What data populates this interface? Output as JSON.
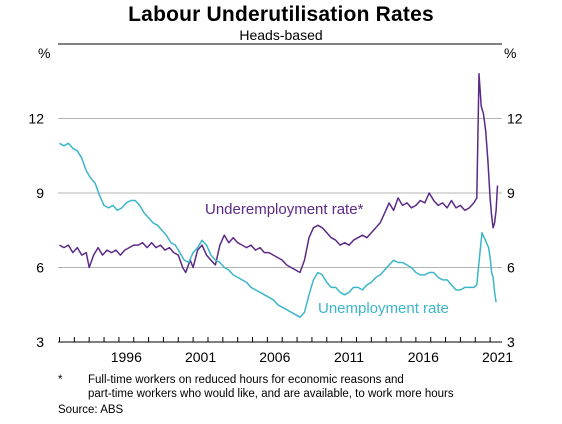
{
  "chart_data": {
    "type": "line",
    "title": "Labour Underutilisation Rates",
    "subtitle": "Heads-based",
    "unit_left": "%",
    "unit_right": "%",
    "ylim": [
      3,
      15
    ],
    "yticks": [
      3,
      6,
      9,
      12
    ],
    "xlim": [
      1991.9,
      2021.8
    ],
    "xticks": [
      {
        "label": "1996",
        "value": 1996.5
      },
      {
        "label": "2001",
        "value": 2001.5
      },
      {
        "label": "2006",
        "value": 2006.5
      },
      {
        "label": "2011",
        "value": 2011.5
      },
      {
        "label": "2016",
        "value": 2016.5
      },
      {
        "label": "2021",
        "value": 2021.5
      }
    ],
    "grid": true,
    "series": [
      {
        "name": "Underemployment rate*",
        "color": "#5b2a86",
        "points": [
          [
            1992.0,
            6.9
          ],
          [
            1992.3,
            6.8
          ],
          [
            1992.6,
            6.9
          ],
          [
            1992.9,
            6.6
          ],
          [
            1993.2,
            6.8
          ],
          [
            1993.5,
            6.5
          ],
          [
            1993.8,
            6.6
          ],
          [
            1994.0,
            6.0
          ],
          [
            1994.3,
            6.5
          ],
          [
            1994.6,
            6.8
          ],
          [
            1994.9,
            6.5
          ],
          [
            1995.2,
            6.7
          ],
          [
            1995.5,
            6.6
          ],
          [
            1995.8,
            6.7
          ],
          [
            1996.1,
            6.5
          ],
          [
            1996.4,
            6.7
          ],
          [
            1996.7,
            6.8
          ],
          [
            1997.0,
            6.9
          ],
          [
            1997.3,
            6.9
          ],
          [
            1997.6,
            7.0
          ],
          [
            1997.9,
            6.8
          ],
          [
            1998.2,
            7.0
          ],
          [
            1998.5,
            6.8
          ],
          [
            1998.8,
            6.9
          ],
          [
            1999.1,
            6.7
          ],
          [
            1999.4,
            6.8
          ],
          [
            1999.7,
            6.6
          ],
          [
            2000.0,
            6.5
          ],
          [
            2000.3,
            6.0
          ],
          [
            2000.5,
            5.8
          ],
          [
            2000.8,
            6.3
          ],
          [
            2001.0,
            6.0
          ],
          [
            2001.3,
            6.7
          ],
          [
            2001.6,
            6.9
          ],
          [
            2001.9,
            6.5
          ],
          [
            2002.2,
            6.3
          ],
          [
            2002.5,
            6.1
          ],
          [
            2002.8,
            6.9
          ],
          [
            2003.1,
            7.3
          ],
          [
            2003.4,
            7.0
          ],
          [
            2003.7,
            7.2
          ],
          [
            2004.0,
            7.0
          ],
          [
            2004.3,
            6.9
          ],
          [
            2004.6,
            6.8
          ],
          [
            2004.9,
            6.9
          ],
          [
            2005.2,
            6.7
          ],
          [
            2005.5,
            6.8
          ],
          [
            2005.8,
            6.6
          ],
          [
            2006.1,
            6.6
          ],
          [
            2006.4,
            6.5
          ],
          [
            2006.7,
            6.4
          ],
          [
            2007.0,
            6.3
          ],
          [
            2007.3,
            6.1
          ],
          [
            2007.6,
            6.0
          ],
          [
            2007.9,
            5.9
          ],
          [
            2008.2,
            5.8
          ],
          [
            2008.5,
            6.3
          ],
          [
            2008.8,
            7.2
          ],
          [
            2009.1,
            7.6
          ],
          [
            2009.4,
            7.7
          ],
          [
            2009.7,
            7.6
          ],
          [
            2010.0,
            7.4
          ],
          [
            2010.3,
            7.2
          ],
          [
            2010.6,
            7.1
          ],
          [
            2010.9,
            6.9
          ],
          [
            2011.2,
            7.0
          ],
          [
            2011.5,
            6.9
          ],
          [
            2011.8,
            7.1
          ],
          [
            2012.1,
            7.2
          ],
          [
            2012.4,
            7.3
          ],
          [
            2012.7,
            7.2
          ],
          [
            2013.0,
            7.4
          ],
          [
            2013.3,
            7.6
          ],
          [
            2013.6,
            7.8
          ],
          [
            2013.9,
            8.2
          ],
          [
            2014.2,
            8.6
          ],
          [
            2014.5,
            8.3
          ],
          [
            2014.8,
            8.8
          ],
          [
            2015.1,
            8.5
          ],
          [
            2015.4,
            8.6
          ],
          [
            2015.7,
            8.4
          ],
          [
            2016.0,
            8.5
          ],
          [
            2016.3,
            8.7
          ],
          [
            2016.6,
            8.6
          ],
          [
            2016.9,
            9.0
          ],
          [
            2017.2,
            8.7
          ],
          [
            2017.5,
            8.5
          ],
          [
            2017.8,
            8.6
          ],
          [
            2018.1,
            8.4
          ],
          [
            2018.4,
            8.7
          ],
          [
            2018.7,
            8.4
          ],
          [
            2019.0,
            8.5
          ],
          [
            2019.3,
            8.3
          ],
          [
            2019.6,
            8.4
          ],
          [
            2019.9,
            8.6
          ],
          [
            2020.1,
            8.8
          ],
          [
            2020.25,
            13.8
          ],
          [
            2020.4,
            12.5
          ],
          [
            2020.55,
            12.2
          ],
          [
            2020.7,
            11.5
          ],
          [
            2020.85,
            10.3
          ],
          [
            2021.0,
            8.8
          ],
          [
            2021.1,
            8.1
          ],
          [
            2021.2,
            7.6
          ],
          [
            2021.3,
            7.8
          ],
          [
            2021.4,
            8.3
          ],
          [
            2021.5,
            9.3
          ]
        ]
      },
      {
        "name": "Unemployment rate",
        "color": "#3bb6c9",
        "points": [
          [
            1992.0,
            11.0
          ],
          [
            1992.3,
            10.9
          ],
          [
            1992.6,
            11.0
          ],
          [
            1992.9,
            10.8
          ],
          [
            1993.2,
            10.7
          ],
          [
            1993.5,
            10.4
          ],
          [
            1993.8,
            9.9
          ],
          [
            1994.1,
            9.6
          ],
          [
            1994.4,
            9.4
          ],
          [
            1994.7,
            8.9
          ],
          [
            1995.0,
            8.5
          ],
          [
            1995.3,
            8.4
          ],
          [
            1995.6,
            8.5
          ],
          [
            1995.9,
            8.3
          ],
          [
            1996.2,
            8.4
          ],
          [
            1996.5,
            8.6
          ],
          [
            1996.8,
            8.7
          ],
          [
            1997.1,
            8.7
          ],
          [
            1997.4,
            8.5
          ],
          [
            1997.7,
            8.2
          ],
          [
            1998.0,
            8.0
          ],
          [
            1998.3,
            7.8
          ],
          [
            1998.6,
            7.7
          ],
          [
            1998.9,
            7.5
          ],
          [
            1999.2,
            7.3
          ],
          [
            1999.5,
            7.0
          ],
          [
            1999.8,
            6.9
          ],
          [
            2000.1,
            6.6
          ],
          [
            2000.4,
            6.3
          ],
          [
            2000.7,
            6.2
          ],
          [
            2001.0,
            6.6
          ],
          [
            2001.3,
            6.8
          ],
          [
            2001.6,
            7.1
          ],
          [
            2001.9,
            6.9
          ],
          [
            2002.2,
            6.5
          ],
          [
            2002.5,
            6.3
          ],
          [
            2002.8,
            6.2
          ],
          [
            2003.1,
            6.0
          ],
          [
            2003.4,
            5.9
          ],
          [
            2003.7,
            5.7
          ],
          [
            2004.0,
            5.6
          ],
          [
            2004.3,
            5.5
          ],
          [
            2004.6,
            5.4
          ],
          [
            2004.9,
            5.2
          ],
          [
            2005.2,
            5.1
          ],
          [
            2005.5,
            5.0
          ],
          [
            2005.8,
            4.9
          ],
          [
            2006.1,
            4.8
          ],
          [
            2006.4,
            4.7
          ],
          [
            2006.7,
            4.5
          ],
          [
            2007.0,
            4.4
          ],
          [
            2007.3,
            4.3
          ],
          [
            2007.6,
            4.2
          ],
          [
            2007.9,
            4.1
          ],
          [
            2008.2,
            4.0
          ],
          [
            2008.5,
            4.2
          ],
          [
            2008.8,
            4.9
          ],
          [
            2009.1,
            5.5
          ],
          [
            2009.4,
            5.8
          ],
          [
            2009.7,
            5.7
          ],
          [
            2010.0,
            5.4
          ],
          [
            2010.3,
            5.2
          ],
          [
            2010.6,
            5.2
          ],
          [
            2010.9,
            5.0
          ],
          [
            2011.2,
            4.9
          ],
          [
            2011.5,
            5.0
          ],
          [
            2011.8,
            5.2
          ],
          [
            2012.1,
            5.2
          ],
          [
            2012.4,
            5.1
          ],
          [
            2012.7,
            5.3
          ],
          [
            2013.0,
            5.4
          ],
          [
            2013.3,
            5.6
          ],
          [
            2013.6,
            5.7
          ],
          [
            2013.9,
            5.9
          ],
          [
            2014.2,
            6.1
          ],
          [
            2014.5,
            6.3
          ],
          [
            2014.8,
            6.2
          ],
          [
            2015.1,
            6.2
          ],
          [
            2015.4,
            6.1
          ],
          [
            2015.7,
            6.0
          ],
          [
            2016.0,
            5.8
          ],
          [
            2016.3,
            5.7
          ],
          [
            2016.6,
            5.7
          ],
          [
            2016.9,
            5.8
          ],
          [
            2017.2,
            5.8
          ],
          [
            2017.5,
            5.6
          ],
          [
            2017.8,
            5.5
          ],
          [
            2018.1,
            5.5
          ],
          [
            2018.4,
            5.3
          ],
          [
            2018.7,
            5.1
          ],
          [
            2019.0,
            5.1
          ],
          [
            2019.3,
            5.2
          ],
          [
            2019.6,
            5.2
          ],
          [
            2019.9,
            5.2
          ],
          [
            2020.1,
            5.3
          ],
          [
            2020.3,
            6.5
          ],
          [
            2020.45,
            7.4
          ],
          [
            2020.6,
            7.2
          ],
          [
            2020.75,
            7.0
          ],
          [
            2020.9,
            6.8
          ],
          [
            2021.0,
            6.4
          ],
          [
            2021.1,
            5.8
          ],
          [
            2021.2,
            5.6
          ],
          [
            2021.3,
            5.0
          ],
          [
            2021.4,
            4.6
          ]
        ]
      }
    ],
    "labels": {
      "underemployment": "Underemployment rate*",
      "unemployment": "Unemployment rate"
    }
  },
  "footnote": {
    "marker": "*",
    "line1": "Full-time workers on reduced hours for economic reasons and",
    "line2": "part-time workers who would like, and are available, to work more hours",
    "source": "Source:   ABS"
  }
}
